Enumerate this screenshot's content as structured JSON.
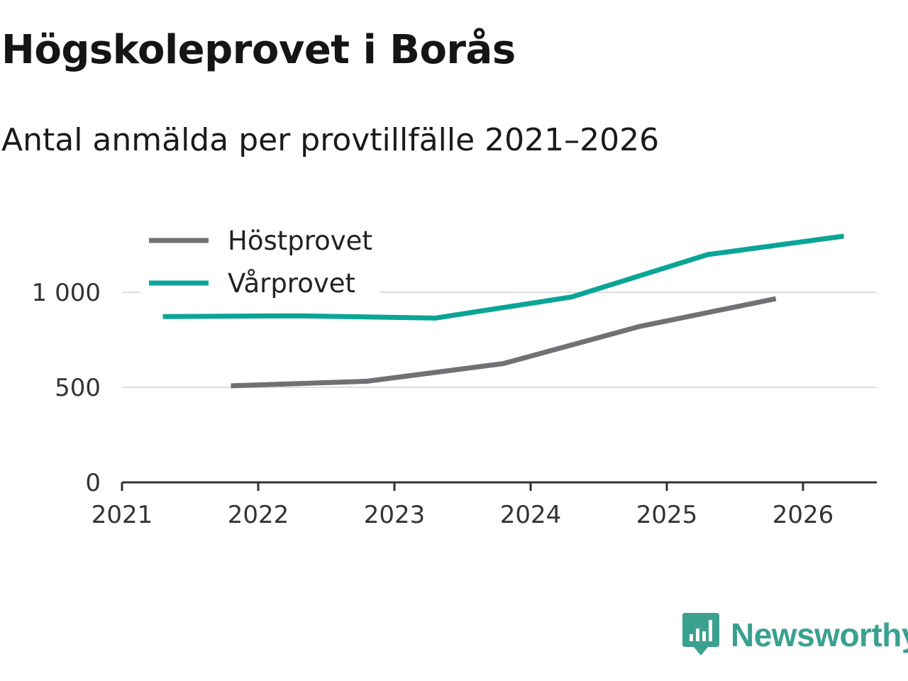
{
  "chart_data": {
    "type": "line",
    "title": "Högskoleprovet i Borås",
    "subtitle": "Antal anmälda per provtillfälle 2021–2026",
    "xlabel": "",
    "ylabel": "",
    "xlim": [
      2021,
      2026.55
    ],
    "ylim": [
      0,
      1000
    ],
    "x_ticks": [
      2021,
      2022,
      2023,
      2024,
      2025,
      2026
    ],
    "x_tick_labels": [
      "2021",
      "2022",
      "2023",
      "2024",
      "2025",
      "2026"
    ],
    "y_ticks": [
      0,
      500,
      1000
    ],
    "y_tick_labels": [
      "0",
      "500",
      "1 000"
    ],
    "legend_position": "top-left",
    "series": [
      {
        "name": "Höstprovet",
        "color": "#707075",
        "x": [
          2021.8,
          2022.8,
          2023.8,
          2024.8,
          2025.8
        ],
        "values": [
          508,
          532,
          625,
          820,
          966
        ]
      },
      {
        "name": "Vårprovet",
        "color": "#0aa596",
        "x": [
          2021.3,
          2022.3,
          2023.3,
          2024.3,
          2025.3,
          2026.3
        ],
        "values": [
          872,
          876,
          864,
          975,
          1198,
          1295
        ]
      }
    ]
  },
  "branding": {
    "name": "Newsworthy",
    "icon": "newsworthy-logo-icon",
    "color": "#3aa08f"
  }
}
